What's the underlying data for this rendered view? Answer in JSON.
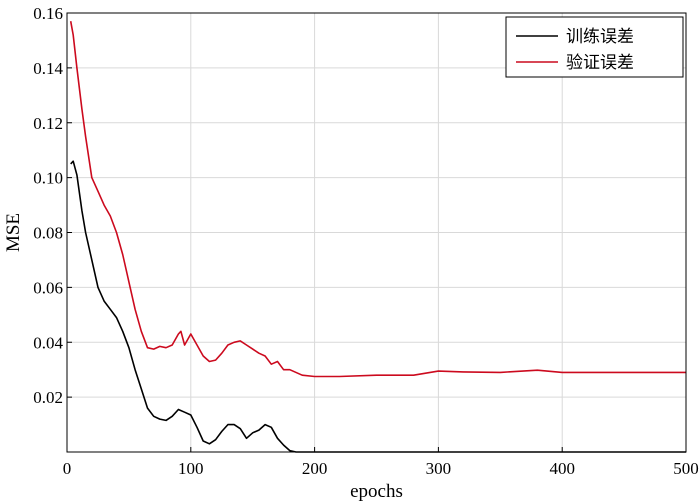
{
  "chart_data": {
    "type": "line",
    "xlabel": "epochs",
    "ylabel": "MSE",
    "xlim": [
      0,
      500
    ],
    "ylim": [
      0,
      0.16
    ],
    "x_ticks": [
      0,
      100,
      200,
      300,
      400,
      500
    ],
    "x_tick_labels": [
      "0",
      "100",
      "200",
      "300",
      "400",
      "500"
    ],
    "y_ticks": [
      0.02,
      0.04,
      0.06,
      0.08,
      0.1,
      0.12,
      0.14,
      0.16
    ],
    "y_tick_labels": [
      "0.02",
      "0.04",
      "0.06",
      "0.08",
      "0.10",
      "0.12",
      "0.14",
      "0.16"
    ],
    "grid": true,
    "legend_position": "top-right",
    "series": [
      {
        "name": "训练误差",
        "color": "#000000",
        "x": [
          3,
          5,
          8,
          12,
          15,
          20,
          25,
          30,
          35,
          40,
          45,
          50,
          55,
          60,
          65,
          70,
          75,
          80,
          85,
          90,
          95,
          100,
          105,
          110,
          115,
          120,
          125,
          130,
          135,
          140,
          145,
          150,
          155,
          160,
          165,
          170,
          175,
          180,
          185,
          190,
          200,
          250,
          300,
          350,
          400,
          450,
          500
        ],
        "y": [
          0.105,
          0.106,
          0.101,
          0.088,
          0.08,
          0.07,
          0.06,
          0.055,
          0.052,
          0.049,
          0.044,
          0.038,
          0.03,
          0.023,
          0.016,
          0.013,
          0.012,
          0.0115,
          0.013,
          0.0155,
          0.0145,
          0.0135,
          0.009,
          0.004,
          0.003,
          0.0045,
          0.0075,
          0.01,
          0.01,
          0.0085,
          0.005,
          0.007,
          0.008,
          0.01,
          0.009,
          0.005,
          0.0025,
          0.0005,
          0.0,
          0.0,
          0.0,
          0.0,
          0.0,
          0.0,
          0.0,
          0.0,
          0.0
        ]
      },
      {
        "name": "验证误差",
        "color": "#cc0a1e",
        "x": [
          3,
          5,
          8,
          12,
          15,
          20,
          25,
          30,
          35,
          40,
          45,
          50,
          55,
          60,
          65,
          70,
          75,
          80,
          85,
          90,
          92,
          95,
          100,
          105,
          110,
          115,
          120,
          125,
          130,
          135,
          140,
          145,
          150,
          155,
          160,
          165,
          170,
          175,
          180,
          190,
          200,
          220,
          250,
          280,
          300,
          320,
          350,
          380,
          400,
          450,
          500
        ],
        "y": [
          0.157,
          0.152,
          0.14,
          0.125,
          0.115,
          0.1,
          0.095,
          0.09,
          0.086,
          0.08,
          0.072,
          0.062,
          0.052,
          0.044,
          0.038,
          0.0375,
          0.0385,
          0.038,
          0.039,
          0.043,
          0.044,
          0.039,
          0.043,
          0.039,
          0.035,
          0.033,
          0.0335,
          0.036,
          0.039,
          0.04,
          0.0405,
          0.039,
          0.0375,
          0.036,
          0.035,
          0.032,
          0.033,
          0.03,
          0.03,
          0.028,
          0.0275,
          0.0275,
          0.028,
          0.028,
          0.0295,
          0.0292,
          0.029,
          0.0298,
          0.029,
          0.029,
          0.029
        ]
      }
    ]
  }
}
